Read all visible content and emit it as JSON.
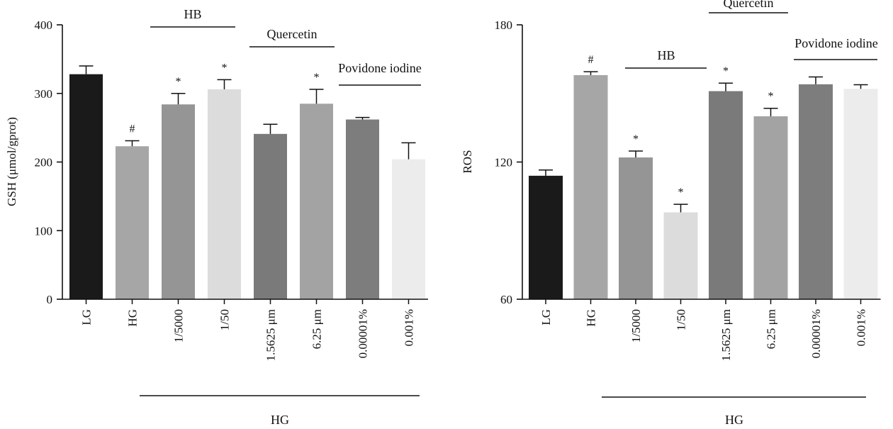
{
  "chart_data": [
    {
      "type": "bar",
      "ylabel": "GSH (μmol/gprot)",
      "ylim": [
        0,
        400
      ],
      "yticks": [
        "0",
        "100",
        "200",
        "300",
        "400"
      ],
      "categories": [
        "LG",
        "HG",
        "1/5000",
        "1/50",
        "1.5625 μm",
        "6.25 μm",
        "0.00001%",
        "0.001%"
      ],
      "values": [
        328,
        223,
        284,
        306,
        241,
        285,
        262,
        204
      ],
      "errors": [
        12,
        8,
        16,
        14,
        14,
        21,
        3,
        24
      ],
      "markers": [
        "",
        "#",
        "*",
        "*",
        "",
        "*",
        "",
        ""
      ],
      "colors": [
        "#1a1a1a",
        "#a6a6a6",
        "#959595",
        "#dcdcdc",
        "#7a7a7a",
        "#a3a3a3",
        "#7d7d7d",
        "#ececec"
      ],
      "group_labels": [
        "HB",
        "Quercetin",
        "Povidone iodine"
      ],
      "bottom_label": "HG"
    },
    {
      "type": "bar",
      "ylabel": "ROS",
      "ylim": [
        60,
        180
      ],
      "yticks": [
        "60",
        "120",
        "180"
      ],
      "categories": [
        "LG",
        "HG",
        "1/5000",
        "1/50",
        "1.5625 μm",
        "6.25 μm",
        "0.00001%",
        "0.001%"
      ],
      "values": [
        114,
        158,
        122,
        98,
        151,
        140,
        154,
        152
      ],
      "errors": [
        2.5,
        1.5,
        2.8,
        3.5,
        3.5,
        3.5,
        3.2,
        1.8
      ],
      "markers": [
        "",
        "#",
        "*",
        "*",
        "*",
        "*",
        "",
        ""
      ],
      "colors": [
        "#1a1a1a",
        "#a6a6a6",
        "#959595",
        "#dcdcdc",
        "#7a7a7a",
        "#a3a3a3",
        "#7d7d7d",
        "#ececec"
      ],
      "group_labels": [
        "HB",
        "Quercetin",
        "Povidone iodine"
      ],
      "bottom_label": "HG"
    }
  ]
}
